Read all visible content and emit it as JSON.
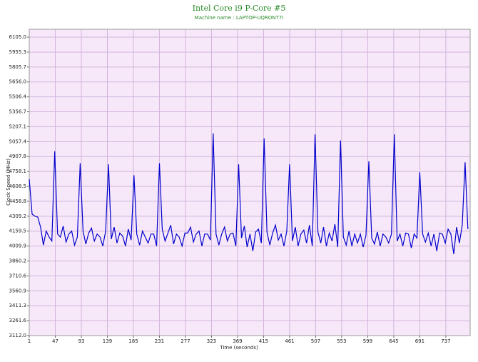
{
  "chart_data": {
    "type": "line",
    "title": "Intel Core i9 P-Core #5",
    "subtitle": "Machine name : LAPTOP-UQRONT7I",
    "x_label": "Time (seconds)",
    "y_label": "Clock Speed (MHz)",
    "xlim": [
      1,
      780
    ],
    "xticks": [
      1,
      47,
      93,
      139,
      185,
      231,
      277,
      323,
      369,
      415,
      461,
      507,
      553,
      599,
      645,
      691,
      737
    ],
    "ylim": [
      3112,
      6184
    ],
    "yticks": [
      {
        "value": 3112,
        "label": "3112.0"
      },
      3261.6,
      3411.3,
      3560.9,
      3710.6,
      3860.2,
      4009.9,
      4159.5,
      4309.2,
      4458.8,
      4608.5,
      4758.1,
      4907.8,
      5057.4,
      5207.1,
      5356.7,
      5506.4,
      {
        "value": 5656,
        "label": "5656.0"
      },
      5805.7,
      5955.3,
      {
        "value": 6105,
        "label": "6105.0"
      }
    ],
    "grid": true,
    "series": [
      {
        "color": "#0000cc",
        "x": [
          1,
          6,
          11,
          16,
          21,
          26,
          31,
          36,
          41,
          46,
          51,
          56,
          61,
          66,
          71,
          76,
          81,
          86,
          91,
          96,
          101,
          106,
          111,
          116,
          121,
          126,
          131,
          136,
          141,
          146,
          151,
          156,
          161,
          166,
          171,
          176,
          181,
          186,
          191,
          196,
          201,
          206,
          211,
          216,
          221,
          226,
          231,
          236,
          241,
          246,
          251,
          256,
          261,
          266,
          271,
          276,
          281,
          286,
          291,
          296,
          301,
          306,
          311,
          316,
          321,
          326,
          331,
          336,
          341,
          346,
          351,
          356,
          361,
          366,
          371,
          376,
          381,
          386,
          391,
          396,
          401,
          406,
          411,
          416,
          421,
          426,
          431,
          436,
          441,
          446,
          451,
          456,
          461,
          466,
          471,
          476,
          481,
          486,
          491,
          496,
          501,
          506,
          511,
          516,
          521,
          526,
          531,
          536,
          541,
          546,
          551,
          556,
          561,
          566,
          571,
          576,
          581,
          586,
          591,
          596,
          601,
          606,
          611,
          616,
          621,
          626,
          631,
          636,
          641,
          646,
          651,
          656,
          661,
          666,
          671,
          676,
          681,
          686,
          691,
          696,
          701,
          706,
          711,
          716,
          721,
          726,
          731,
          736,
          741,
          746,
          751,
          756,
          761,
          766,
          771,
          776
        ],
        "values": [
          4680,
          4330,
          4310,
          4300,
          4200,
          4020,
          4160,
          4100,
          4060,
          4960,
          4130,
          4100,
          4210,
          4050,
          4130,
          4160,
          4020,
          4100,
          4840,
          4160,
          4030,
          4140,
          4190,
          4060,
          4130,
          4100,
          4010,
          4160,
          4830,
          4080,
          4200,
          4040,
          4140,
          4110,
          4010,
          4180,
          4070,
          4720,
          4130,
          4020,
          4160,
          4100,
          4040,
          4130,
          4130,
          4010,
          4840,
          4180,
          4060,
          4140,
          4220,
          4030,
          4130,
          4100,
          4010,
          4140,
          4140,
          4200,
          4050,
          4130,
          4160,
          4010,
          4130,
          4130,
          4070,
          5140,
          4130,
          4020,
          4130,
          4200,
          4060,
          4130,
          4140,
          4010,
          4830,
          4090,
          4210,
          4000,
          4130,
          3960,
          4150,
          4180,
          4040,
          5090,
          4150,
          4020,
          4140,
          4220,
          4070,
          4130,
          4010,
          4160,
          4830,
          4060,
          4200,
          4010,
          4130,
          4170,
          4040,
          4220,
          4010,
          5130,
          4150,
          4040,
          4200,
          4010,
          4140,
          4060,
          4230,
          4000,
          5070,
          4100,
          4020,
          4160,
          4010,
          4130,
          4040,
          4130,
          4000,
          4120,
          4860,
          4090,
          4030,
          4150,
          4010,
          4130,
          4100,
          4040,
          4130,
          5130,
          4060,
          4130,
          4010,
          4140,
          4130,
          3990,
          4130,
          4090,
          4750,
          4130,
          4050,
          4140,
          4010,
          4130,
          3960,
          4140,
          4130,
          4040,
          4180,
          4130,
          3930,
          4200,
          4040,
          4220,
          4850,
          4180
        ]
      }
    ]
  }
}
